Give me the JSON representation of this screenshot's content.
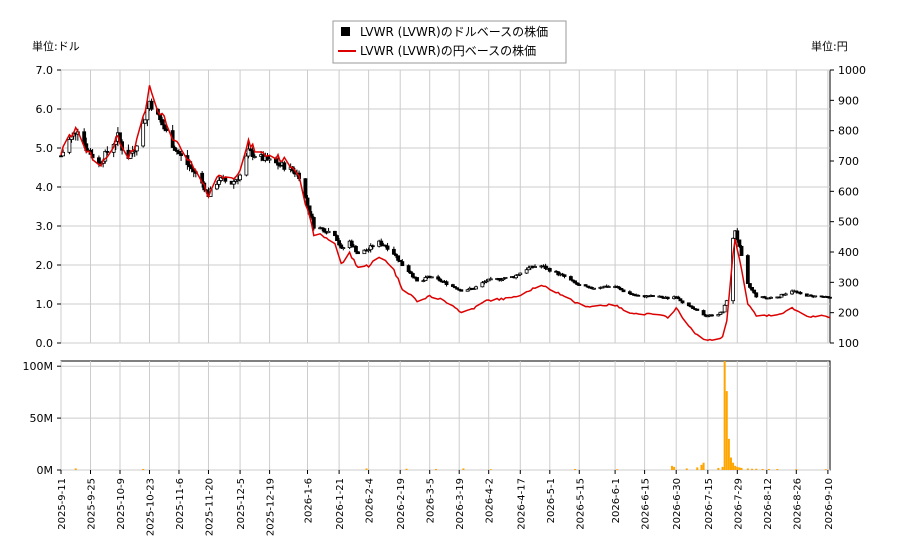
{
  "chart_data": {
    "type": "candlestick",
    "legend": {
      "placement": "top-center",
      "entries": [
        {
          "label": "LVWR (LVWR)のドルベースの株価",
          "color": "#000000",
          "marker": "square"
        },
        {
          "label": "LVWR (LVWR)の円ベースの株価",
          "color": "#dd0000",
          "marker": "line"
        }
      ]
    },
    "left_unit_label": "単位:ドル",
    "right_unit_label": "単位:円",
    "price_axis": {
      "min": 0.0,
      "max": 7.0,
      "ticks": [
        "0.0",
        "1.0",
        "2.0",
        "3.0",
        "4.0",
        "5.0",
        "6.0",
        "7.0"
      ]
    },
    "yen_axis": {
      "min": 100,
      "max": 1000,
      "ticks": [
        "100",
        "200",
        "300",
        "400",
        "500",
        "600",
        "700",
        "800",
        "900",
        "1000"
      ]
    },
    "volume_axis": {
      "min": 0,
      "max": 105,
      "ticks": [
        {
          "label": "0M",
          "value": 0
        },
        {
          "label": "50M",
          "value": 50
        },
        {
          "label": "100M",
          "value": 100
        }
      ]
    },
    "x_axis": {
      "start": "2025-09-11",
      "end": "2026-09-11",
      "tick_labels": [
        "2025-9-11",
        "2025-9-25",
        "2025-10-9",
        "2025-10-23",
        "2025-11-6",
        "2025-11-20",
        "2025-12-5",
        "2025-12-19",
        "2026-1-6",
        "2026-1-21",
        "2026-2-4",
        "2026-2-19",
        "2026-3-5",
        "2026-3-19",
        "2026-4-2",
        "2026-4-17",
        "2026-5-1",
        "2026-5-15",
        "2026-6-1",
        "2026-6-15",
        "2026-6-30",
        "2026-7-15",
        "2026-7-29",
        "2026-8-12",
        "2026-8-26",
        "2026-9-10"
      ]
    },
    "grid": true,
    "usd_anchors": [
      [
        "2025-09-11",
        4.8
      ],
      [
        "2025-09-15",
        5.2
      ],
      [
        "2025-09-19",
        5.5
      ],
      [
        "2025-09-23",
        5.0
      ],
      [
        "2025-09-29",
        4.6
      ],
      [
        "2025-10-03",
        4.9
      ],
      [
        "2025-10-08",
        5.3
      ],
      [
        "2025-10-12",
        4.7
      ],
      [
        "2025-10-16",
        5.0
      ],
      [
        "2025-10-20",
        5.6
      ],
      [
        "2025-10-23",
        6.2
      ],
      [
        "2025-10-27",
        5.8
      ],
      [
        "2025-10-31",
        5.4
      ],
      [
        "2025-11-04",
        5.0
      ],
      [
        "2025-11-08",
        4.7
      ],
      [
        "2025-11-13",
        4.4
      ],
      [
        "2025-11-17",
        4.1
      ],
      [
        "2025-11-20",
        3.8
      ],
      [
        "2025-11-25",
        4.2
      ],
      [
        "2025-12-01",
        4.1
      ],
      [
        "2025-12-05",
        4.3
      ],
      [
        "2025-12-09",
        4.9
      ],
      [
        "2025-12-13",
        4.8
      ],
      [
        "2025-12-17",
        4.7
      ],
      [
        "2025-12-22",
        4.6
      ],
      [
        "2025-12-28",
        4.5
      ],
      [
        "2026-01-02",
        4.3
      ],
      [
        "2026-01-05",
        3.7
      ],
      [
        "2026-01-09",
        3.0
      ],
      [
        "2026-01-14",
        2.9
      ],
      [
        "2026-01-19",
        2.8
      ],
      [
        "2026-01-22",
        2.4
      ],
      [
        "2026-01-26",
        2.6
      ],
      [
        "2026-01-30",
        2.3
      ],
      [
        "2026-02-04",
        2.4
      ],
      [
        "2026-02-08",
        2.6
      ],
      [
        "2026-02-12",
        2.5
      ],
      [
        "2026-02-16",
        2.3
      ],
      [
        "2026-02-20",
        2.0
      ],
      [
        "2026-02-24",
        1.8
      ],
      [
        "2026-02-28",
        1.5
      ],
      [
        "2026-03-04",
        1.7
      ],
      [
        "2026-03-10",
        1.6
      ],
      [
        "2026-03-16",
        1.45
      ],
      [
        "2026-03-20",
        1.35
      ],
      [
        "2026-03-26",
        1.4
      ],
      [
        "2026-04-01",
        1.6
      ],
      [
        "2026-04-08",
        1.65
      ],
      [
        "2026-04-14",
        1.7
      ],
      [
        "2026-04-20",
        1.9
      ],
      [
        "2026-04-26",
        2.0
      ],
      [
        "2026-05-02",
        1.85
      ],
      [
        "2026-05-08",
        1.7
      ],
      [
        "2026-05-14",
        1.5
      ],
      [
        "2026-05-20",
        1.4
      ],
      [
        "2026-05-26",
        1.45
      ],
      [
        "2026-06-01",
        1.45
      ],
      [
        "2026-06-06",
        1.3
      ],
      [
        "2026-06-12",
        1.2
      ],
      [
        "2026-06-20",
        1.2
      ],
      [
        "2026-06-26",
        1.15
      ],
      [
        "2026-06-30",
        1.2
      ],
      [
        "2026-07-04",
        1.0
      ],
      [
        "2026-07-09",
        0.85
      ],
      [
        "2026-07-14",
        0.7
      ],
      [
        "2026-07-19",
        0.72
      ],
      [
        "2026-07-22",
        0.8
      ],
      [
        "2026-07-24",
        1.1
      ],
      [
        "2026-07-26",
        2.4
      ],
      [
        "2026-07-28",
        2.9
      ],
      [
        "2026-07-31",
        2.2
      ],
      [
        "2026-08-03",
        1.5
      ],
      [
        "2026-08-07",
        1.2
      ],
      [
        "2026-08-12",
        1.15
      ],
      [
        "2026-08-18",
        1.2
      ],
      [
        "2026-08-24",
        1.35
      ],
      [
        "2026-08-28",
        1.25
      ],
      [
        "2026-09-02",
        1.2
      ],
      [
        "2026-09-06",
        1.2
      ],
      [
        "2026-09-11",
        1.15
      ]
    ],
    "jpy_anchors": [
      [
        "2025-09-11",
        725
      ],
      [
        "2025-09-15",
        780
      ],
      [
        "2025-09-19",
        805
      ],
      [
        "2025-09-23",
        735
      ],
      [
        "2025-09-29",
        685
      ],
      [
        "2025-10-03",
        715
      ],
      [
        "2025-10-08",
        780
      ],
      [
        "2025-10-12",
        700
      ],
      [
        "2025-10-16",
        745
      ],
      [
        "2025-10-20",
        840
      ],
      [
        "2025-10-23",
        950
      ],
      [
        "2025-10-27",
        875
      ],
      [
        "2025-10-31",
        825
      ],
      [
        "2025-11-04",
        765
      ],
      [
        "2025-11-08",
        725
      ],
      [
        "2025-11-13",
        675
      ],
      [
        "2025-11-17",
        625
      ],
      [
        "2025-11-20",
        590
      ],
      [
        "2025-11-25",
        655
      ],
      [
        "2025-12-01",
        640
      ],
      [
        "2025-12-05",
        675
      ],
      [
        "2025-12-09",
        760
      ],
      [
        "2025-12-13",
        730
      ],
      [
        "2025-12-17",
        720
      ],
      [
        "2025-12-22",
        715
      ],
      [
        "2025-12-28",
        695
      ],
      [
        "2026-01-02",
        660
      ],
      [
        "2026-01-05",
        560
      ],
      [
        "2026-01-09",
        460
      ],
      [
        "2026-01-14",
        450
      ],
      [
        "2026-01-19",
        430
      ],
      [
        "2026-01-22",
        360
      ],
      [
        "2026-01-26",
        395
      ],
      [
        "2026-01-30",
        350
      ],
      [
        "2026-02-04",
        355
      ],
      [
        "2026-02-08",
        380
      ],
      [
        "2026-02-12",
        375
      ],
      [
        "2026-02-16",
        340
      ],
      [
        "2026-02-20",
        280
      ],
      [
        "2026-02-24",
        260
      ],
      [
        "2026-02-28",
        230
      ],
      [
        "2026-03-04",
        255
      ],
      [
        "2026-03-10",
        245
      ],
      [
        "2026-03-16",
        225
      ],
      [
        "2026-03-20",
        200
      ],
      [
        "2026-03-26",
        215
      ],
      [
        "2026-04-01",
        240
      ],
      [
        "2026-04-08",
        245
      ],
      [
        "2026-04-14",
        250
      ],
      [
        "2026-04-20",
        270
      ],
      [
        "2026-04-26",
        290
      ],
      [
        "2026-05-02",
        275
      ],
      [
        "2026-05-08",
        255
      ],
      [
        "2026-05-14",
        230
      ],
      [
        "2026-05-20",
        220
      ],
      [
        "2026-05-26",
        225
      ],
      [
        "2026-06-01",
        225
      ],
      [
        "2026-06-06",
        205
      ],
      [
        "2026-06-12",
        195
      ],
      [
        "2026-06-20",
        195
      ],
      [
        "2026-06-26",
        185
      ],
      [
        "2026-06-30",
        215
      ],
      [
        "2026-07-04",
        175
      ],
      [
        "2026-07-09",
        130
      ],
      [
        "2026-07-14",
        110
      ],
      [
        "2026-07-19",
        110
      ],
      [
        "2026-07-22",
        120
      ],
      [
        "2026-07-24",
        175
      ],
      [
        "2026-07-26",
        360
      ],
      [
        "2026-07-28",
        440
      ],
      [
        "2026-07-31",
        340
      ],
      [
        "2026-08-03",
        230
      ],
      [
        "2026-08-07",
        190
      ],
      [
        "2026-08-12",
        190
      ],
      [
        "2026-08-18",
        195
      ],
      [
        "2026-08-24",
        215
      ],
      [
        "2026-08-28",
        200
      ],
      [
        "2026-09-02",
        185
      ],
      [
        "2026-09-06",
        190
      ],
      [
        "2026-09-11",
        185
      ]
    ],
    "volume_bars_millions": [
      [
        "2025-09-18",
        1.5
      ],
      [
        "2025-10-20",
        1.0
      ],
      [
        "2026-02-03",
        1.5
      ],
      [
        "2026-02-22",
        1.2
      ],
      [
        "2026-03-08",
        1.0
      ],
      [
        "2026-03-21",
        1.5
      ],
      [
        "2026-04-03",
        0.8
      ],
      [
        "2026-05-13",
        1.0
      ],
      [
        "2026-06-02",
        0.8
      ],
      [
        "2026-06-28",
        4.0
      ],
      [
        "2026-06-29",
        3.0
      ],
      [
        "2026-07-05",
        1.5
      ],
      [
        "2026-07-10",
        2.5
      ],
      [
        "2026-07-12",
        5.0
      ],
      [
        "2026-07-13",
        7.0
      ],
      [
        "2026-07-20",
        2.0
      ],
      [
        "2026-07-22",
        3.0
      ],
      [
        "2026-07-23",
        105
      ],
      [
        "2026-07-24",
        76
      ],
      [
        "2026-07-25",
        30
      ],
      [
        "2026-07-26",
        12
      ],
      [
        "2026-07-27",
        7
      ],
      [
        "2026-07-28",
        4
      ],
      [
        "2026-07-29",
        3
      ],
      [
        "2026-07-30",
        2.5
      ],
      [
        "2026-07-31",
        2.0
      ],
      [
        "2026-08-03",
        1.5
      ],
      [
        "2026-08-05",
        1.2
      ],
      [
        "2026-08-07",
        1.2
      ],
      [
        "2026-08-10",
        1.0
      ],
      [
        "2026-08-13",
        1.0
      ],
      [
        "2026-08-17",
        1.0
      ],
      [
        "2026-08-26",
        0.8
      ],
      [
        "2026-09-09",
        0.8
      ]
    ]
  }
}
